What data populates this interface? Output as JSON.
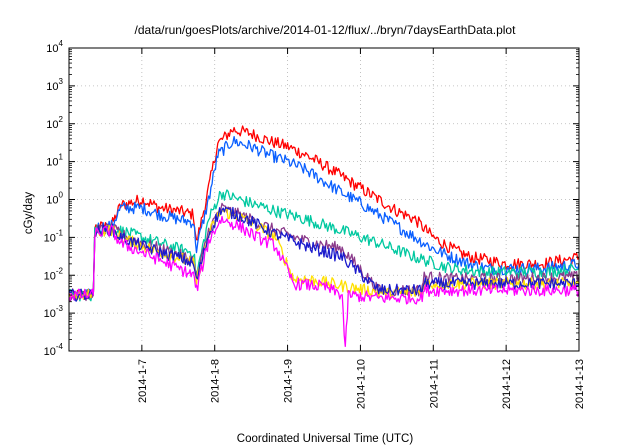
{
  "chart_data": {
    "type": "line",
    "title": "/data/run/goesPlots/archive/2014-01-12/flux/../bryn/7daysEarthData.plot",
    "xlabel": "Coordinated Universal Time (UTC)",
    "ylabel": "cGy/day",
    "x_ticks": [
      "2014-1-7",
      "2014-1-8",
      "2014-1-9",
      "2014-1-10",
      "2014-1-11",
      "2014-1-12",
      "2014-1-13"
    ],
    "xlim": [
      "2014-01-06T00:00",
      "2014-01-13T00:00"
    ],
    "y_scale": "log",
    "ylim": [
      0.0001,
      10000
    ],
    "y_ticks": [
      {
        "base": "10",
        "exp": "-4"
      },
      {
        "base": "10",
        "exp": "-3"
      },
      {
        "base": "10",
        "exp": "-2"
      },
      {
        "base": "10",
        "exp": "-1"
      },
      {
        "base": "10",
        "exp": "0"
      },
      {
        "base": "10",
        "exp": "1"
      },
      {
        "base": "10",
        "exp": "2"
      },
      {
        "base": "10",
        "exp": "3"
      },
      {
        "base": "10",
        "exp": "4"
      }
    ],
    "grid": true,
    "series": [
      {
        "color": "#ff0000",
        "points": [
          [
            "2014-01-06T00:00",
            0.003
          ],
          [
            "2014-01-06T08:00",
            0.003
          ],
          [
            "2014-01-06T08:30",
            0.18
          ],
          [
            "2014-01-06T14:00",
            0.2
          ],
          [
            "2014-01-06T17:00",
            0.7
          ],
          [
            "2014-01-07T00:00",
            1.0
          ],
          [
            "2014-01-07T06:00",
            0.6
          ],
          [
            "2014-01-07T12:00",
            0.5
          ],
          [
            "2014-01-07T17:00",
            0.4
          ],
          [
            "2014-01-07T18:00",
            0.07
          ],
          [
            "2014-01-07T22:00",
            2.0
          ],
          [
            "2014-01-08T01:00",
            30
          ],
          [
            "2014-01-08T06:00",
            70
          ],
          [
            "2014-01-08T12:00",
            55
          ],
          [
            "2014-01-08T18:00",
            35
          ],
          [
            "2014-01-09T00:00",
            25
          ],
          [
            "2014-01-09T06:00",
            15
          ],
          [
            "2014-01-09T12:00",
            8
          ],
          [
            "2014-01-09T18:00",
            4
          ],
          [
            "2014-01-10T00:00",
            2
          ],
          [
            "2014-01-10T06:00",
            1
          ],
          [
            "2014-01-10T12:00",
            0.5
          ],
          [
            "2014-01-10T18:00",
            0.3
          ],
          [
            "2014-01-11T00:00",
            0.1
          ],
          [
            "2014-01-11T06:00",
            0.05
          ],
          [
            "2014-01-11T12:00",
            0.03
          ],
          [
            "2014-01-11T18:00",
            0.025
          ],
          [
            "2014-01-12T00:00",
            0.02
          ],
          [
            "2014-01-12T12:00",
            0.02
          ],
          [
            "2014-01-13T00:00",
            0.03
          ]
        ]
      },
      {
        "color": "#0a5fff",
        "points": [
          [
            "2014-01-06T00:00",
            0.003
          ],
          [
            "2014-01-06T08:00",
            0.003
          ],
          [
            "2014-01-06T08:30",
            0.18
          ],
          [
            "2014-01-06T14:00",
            0.2
          ],
          [
            "2014-01-06T17:00",
            0.6
          ],
          [
            "2014-01-07T00:00",
            0.6
          ],
          [
            "2014-01-07T06:00",
            0.4
          ],
          [
            "2014-01-07T12:00",
            0.3
          ],
          [
            "2014-01-07T17:00",
            0.25
          ],
          [
            "2014-01-07T18:00",
            0.05
          ],
          [
            "2014-01-07T22:00",
            1.0
          ],
          [
            "2014-01-08T01:00",
            15
          ],
          [
            "2014-01-08T06:00",
            35
          ],
          [
            "2014-01-08T12:00",
            25
          ],
          [
            "2014-01-08T18:00",
            15
          ],
          [
            "2014-01-09T00:00",
            10
          ],
          [
            "2014-01-09T06:00",
            6
          ],
          [
            "2014-01-09T12:00",
            3
          ],
          [
            "2014-01-09T18:00",
            1.5
          ],
          [
            "2014-01-10T00:00",
            0.8
          ],
          [
            "2014-01-10T06:00",
            0.4
          ],
          [
            "2014-01-10T12:00",
            0.2
          ],
          [
            "2014-01-10T18:00",
            0.1
          ],
          [
            "2014-01-11T00:00",
            0.05
          ],
          [
            "2014-01-11T06:00",
            0.03
          ],
          [
            "2014-01-11T12:00",
            0.02
          ],
          [
            "2014-01-11T18:00",
            0.015
          ],
          [
            "2014-01-12T00:00",
            0.015
          ],
          [
            "2014-01-12T12:00",
            0.015
          ],
          [
            "2014-01-13T00:00",
            0.02
          ]
        ]
      },
      {
        "color": "#00c8a0",
        "points": [
          [
            "2014-01-06T00:00",
            0.003
          ],
          [
            "2014-01-06T08:00",
            0.003
          ],
          [
            "2014-01-06T08:30",
            0.15
          ],
          [
            "2014-01-06T14:00",
            0.18
          ],
          [
            "2014-01-06T17:00",
            0.15
          ],
          [
            "2014-01-07T00:00",
            0.1
          ],
          [
            "2014-01-07T06:00",
            0.07
          ],
          [
            "2014-01-07T12:00",
            0.05
          ],
          [
            "2014-01-07T17:00",
            0.04
          ],
          [
            "2014-01-07T18:00",
            0.01
          ],
          [
            "2014-01-07T22:00",
            0.3
          ],
          [
            "2014-01-08T02:00",
            1.5
          ],
          [
            "2014-01-08T08:00",
            1.0
          ],
          [
            "2014-01-08T14:00",
            0.7
          ],
          [
            "2014-01-08T20:00",
            0.5
          ],
          [
            "2014-01-09T06:00",
            0.3
          ],
          [
            "2014-01-09T18:00",
            0.15
          ],
          [
            "2014-01-10T06:00",
            0.07
          ],
          [
            "2014-01-10T18:00",
            0.03
          ],
          [
            "2014-01-11T06:00",
            0.015
          ],
          [
            "2014-01-11T18:00",
            0.012
          ],
          [
            "2014-01-12T12:00",
            0.012
          ],
          [
            "2014-01-13T00:00",
            0.015
          ]
        ]
      },
      {
        "color": "#8b3a8b",
        "points": [
          [
            "2014-01-06T00:00",
            0.003
          ],
          [
            "2014-01-06T08:00",
            0.003
          ],
          [
            "2014-01-06T08:30",
            0.15
          ],
          [
            "2014-01-06T14:00",
            0.17
          ],
          [
            "2014-01-06T17:00",
            0.12
          ],
          [
            "2014-01-07T00:00",
            0.07
          ],
          [
            "2014-01-07T06:00",
            0.05
          ],
          [
            "2014-01-07T12:00",
            0.035
          ],
          [
            "2014-01-07T17:00",
            0.025
          ],
          [
            "2014-01-07T18:00",
            0.008
          ],
          [
            "2014-01-07T22:00",
            0.15
          ],
          [
            "2014-01-08T02:00",
            0.6
          ],
          [
            "2014-01-08T08:00",
            0.4
          ],
          [
            "2014-01-08T14:00",
            0.25
          ],
          [
            "2014-01-08T20:00",
            0.15
          ],
          [
            "2014-01-09T06:00",
            0.08
          ],
          [
            "2014-01-09T18:00",
            0.05
          ],
          [
            "2014-01-10T06:00",
            0.004
          ],
          [
            "2014-01-10T20:00",
            0.004
          ],
          [
            "2014-01-10T21:00",
            0.009
          ],
          [
            "2014-01-11T06:00",
            0.008
          ],
          [
            "2014-01-12T00:00",
            0.008
          ],
          [
            "2014-01-13T00:00",
            0.009
          ]
        ]
      },
      {
        "color": "#ffe000",
        "points": [
          [
            "2014-01-06T00:00",
            0.003
          ],
          [
            "2014-01-06T08:00",
            0.003
          ],
          [
            "2014-01-06T08:30",
            0.14
          ],
          [
            "2014-01-06T14:00",
            0.16
          ],
          [
            "2014-01-06T17:00",
            0.1
          ],
          [
            "2014-01-07T00:00",
            0.06
          ],
          [
            "2014-01-07T06:00",
            0.04
          ],
          [
            "2014-01-07T12:00",
            0.03
          ],
          [
            "2014-01-07T17:00",
            0.02
          ],
          [
            "2014-01-07T18:00",
            0.007
          ],
          [
            "2014-01-07T22:00",
            0.12
          ],
          [
            "2014-01-08T02:00",
            0.5
          ],
          [
            "2014-01-08T08:00",
            0.35
          ],
          [
            "2014-01-08T14:00",
            0.2
          ],
          [
            "2014-01-08T20:00",
            0.1
          ],
          [
            "2014-01-09T02:00",
            0.008
          ],
          [
            "2014-01-09T06:00",
            0.008
          ],
          [
            "2014-01-10T06:00",
            0.0035
          ],
          [
            "2014-01-10T20:00",
            0.0035
          ],
          [
            "2014-01-10T21:00",
            0.006
          ],
          [
            "2014-01-12T00:00",
            0.006
          ],
          [
            "2014-01-13T00:00",
            0.006
          ]
        ]
      },
      {
        "color": "#1a1acc",
        "points": [
          [
            "2014-01-06T00:00",
            0.003
          ],
          [
            "2014-01-06T08:00",
            0.003
          ],
          [
            "2014-01-06T08:30",
            0.14
          ],
          [
            "2014-01-06T14:00",
            0.16
          ],
          [
            "2014-01-06T17:00",
            0.1
          ],
          [
            "2014-01-07T00:00",
            0.06
          ],
          [
            "2014-01-07T06:00",
            0.04
          ],
          [
            "2014-01-07T12:00",
            0.03
          ],
          [
            "2014-01-07T17:00",
            0.02
          ],
          [
            "2014-01-07T18:00",
            0.007
          ],
          [
            "2014-01-07T22:00",
            0.12
          ],
          [
            "2014-01-08T02:00",
            0.55
          ],
          [
            "2014-01-08T08:00",
            0.38
          ],
          [
            "2014-01-08T14:00",
            0.22
          ],
          [
            "2014-01-08T20:00",
            0.12
          ],
          [
            "2014-01-09T06:00",
            0.06
          ],
          [
            "2014-01-09T18:00",
            0.03
          ],
          [
            "2014-01-10T06:00",
            0.004
          ],
          [
            "2014-01-10T20:00",
            0.004
          ],
          [
            "2014-01-10T21:00",
            0.006
          ],
          [
            "2014-01-12T00:00",
            0.006
          ],
          [
            "2014-01-13T00:00",
            0.006
          ]
        ]
      },
      {
        "color": "#ff00ff",
        "points": [
          [
            "2014-01-06T00:00",
            0.003
          ],
          [
            "2014-01-06T08:00",
            0.003
          ],
          [
            "2014-01-06T08:30",
            0.13
          ],
          [
            "2014-01-06T14:00",
            0.15
          ],
          [
            "2014-01-06T17:00",
            0.07
          ],
          [
            "2014-01-07T00:00",
            0.04
          ],
          [
            "2014-01-07T06:00",
            0.025
          ],
          [
            "2014-01-07T12:00",
            0.015
          ],
          [
            "2014-01-07T17:00",
            0.01
          ],
          [
            "2014-01-07T18:00",
            0.004
          ],
          [
            "2014-01-07T22:00",
            0.08
          ],
          [
            "2014-01-08T02:00",
            0.3
          ],
          [
            "2014-01-08T08:00",
            0.2
          ],
          [
            "2014-01-08T14:00",
            0.1
          ],
          [
            "2014-01-08T20:00",
            0.06
          ],
          [
            "2014-01-09T02:00",
            0.006
          ],
          [
            "2014-01-09T12:00",
            0.005
          ],
          [
            "2014-01-09T18:00",
            0.003
          ],
          [
            "2014-01-09T19:00",
            0.0001
          ],
          [
            "2014-01-09T20:00",
            0.003
          ],
          [
            "2014-01-10T06:00",
            0.0025
          ],
          [
            "2014-01-10T20:00",
            0.0025
          ],
          [
            "2014-01-10T21:00",
            0.004
          ],
          [
            "2014-01-12T00:00",
            0.004
          ],
          [
            "2014-01-13T00:00",
            0.004
          ]
        ]
      }
    ]
  }
}
